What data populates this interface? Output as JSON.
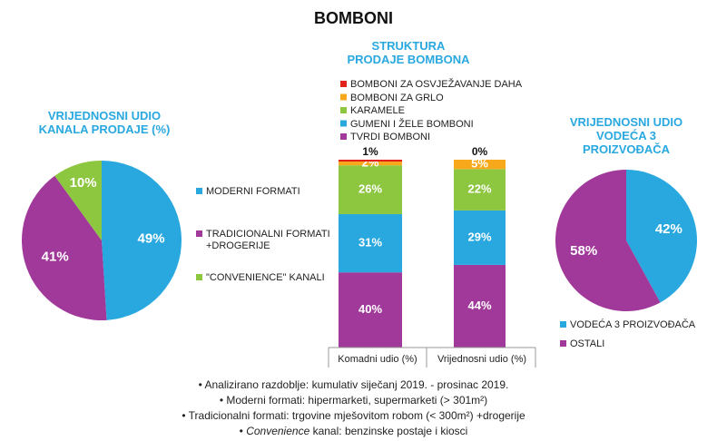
{
  "title": "BOMBONI",
  "chart_data": [
    {
      "type": "pie",
      "title": "VRIJEDNOSNI UDIO KANALA PRODAJE (%)",
      "categories": [
        "MODERNI FORMATI",
        "TRADICIONALNI FORMATI +DROGERIJE",
        "\"CONVENIENCE\" KANALI"
      ],
      "values": [
        49,
        41,
        10
      ],
      "value_labels": [
        "49%",
        "41%",
        "10%"
      ],
      "colors": [
        "#29a8e0",
        "#a0399a",
        "#8dc63f"
      ]
    },
    {
      "type": "stacked_bar",
      "title": "STRUKTURA PRODAJE BOMBONA",
      "categories": [
        "Komadni udio (%)",
        "Vrijednosni udio (%)"
      ],
      "series": [
        {
          "name": "TVRDI BOMBONI",
          "color": "#a0399a",
          "values": [
            40,
            44
          ],
          "value_labels": [
            "40%",
            "44%"
          ]
        },
        {
          "name": "GUMENI I ŽELE BOMBONI",
          "color": "#29a8e0",
          "values": [
            31,
            29
          ],
          "value_labels": [
            "31%",
            "29%"
          ]
        },
        {
          "name": "KARAMELE",
          "color": "#8dc63f",
          "values": [
            26,
            22
          ],
          "value_labels": [
            "26%",
            "22%"
          ]
        },
        {
          "name": "BOMBONI ZA GRLO",
          "color": "#f7a81b",
          "values": [
            2,
            5
          ],
          "value_labels": [
            "2%",
            "5%"
          ]
        },
        {
          "name": "BOMBONI ZA OSVJEŽAVANJE DAHA",
          "color": "#e2231a",
          "values": [
            1,
            0
          ],
          "value_labels": [
            "1%",
            "0%"
          ]
        }
      ],
      "ylim": [
        0,
        100
      ]
    },
    {
      "type": "pie",
      "title": "VRIJEDNOSNI UDIO VODEĆA 3 PROIZVOĐAČA",
      "categories": [
        "VODEĆA 3 PROIZVOĐAČA",
        "OSTALI"
      ],
      "values": [
        42,
        58
      ],
      "value_labels": [
        "42%",
        "58%"
      ],
      "colors": [
        "#29a8e0",
        "#a0399a"
      ]
    }
  ],
  "notes": [
    {
      "text": "Analizirano razdoblje: kumulativ siječanj 2019. - prosinac 2019."
    },
    {
      "text": "Moderni formati: hipermarketi, supermarketi (> 301m²)"
    },
    {
      "text": "Tradicionalni formati: trgovine mješovitom robom (< 300m²) +drogerije"
    },
    {
      "italic": "Convenience",
      "text": " kanal: benzinske postaje i kiosci"
    }
  ]
}
